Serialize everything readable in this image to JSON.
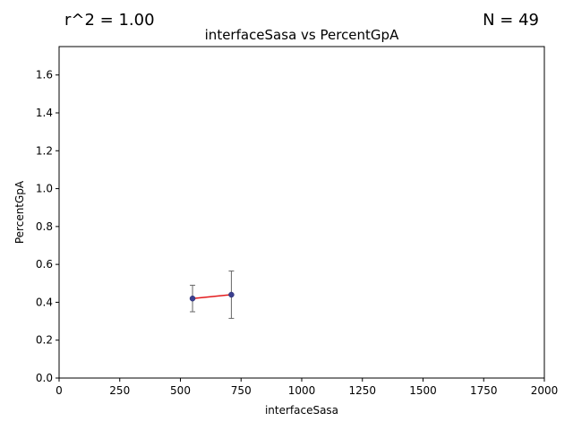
{
  "chart_data": {
    "type": "scatter",
    "title": "interfaceSasa vs PercentGpA",
    "xlabel": "interfaceSasa",
    "ylabel": "PercentGpA",
    "xlim": [
      0,
      2000
    ],
    "ylim": [
      0,
      1.75
    ],
    "xticks": [
      0,
      250,
      500,
      750,
      1000,
      1250,
      1500,
      1750,
      2000
    ],
    "yticks": [
      0.0,
      0.2,
      0.4,
      0.6,
      0.8,
      1.0,
      1.2,
      1.4,
      1.6
    ],
    "xtick_labels": [
      "0",
      "250",
      "500",
      "750",
      "1000",
      "1250",
      "1500",
      "1750",
      "2000"
    ],
    "ytick_labels": [
      "0.0",
      "0.2",
      "0.4",
      "0.6",
      "0.8",
      "1.0",
      "1.2",
      "1.4",
      "1.6"
    ],
    "points": [
      {
        "x": 550,
        "y": 0.42,
        "yerr": 0.07
      },
      {
        "x": 710,
        "y": 0.44,
        "yerr": 0.125
      }
    ],
    "fit_line": {
      "x": [
        550,
        710
      ],
      "y": [
        0.42,
        0.44
      ]
    },
    "colors": {
      "point": "#3b3f8f",
      "fit_line": "#e31a1c",
      "errorbar": "#666666"
    },
    "grid": false
  },
  "annotations": {
    "r_squared": "r^2 = 1.00",
    "n_count": "N = 49"
  }
}
